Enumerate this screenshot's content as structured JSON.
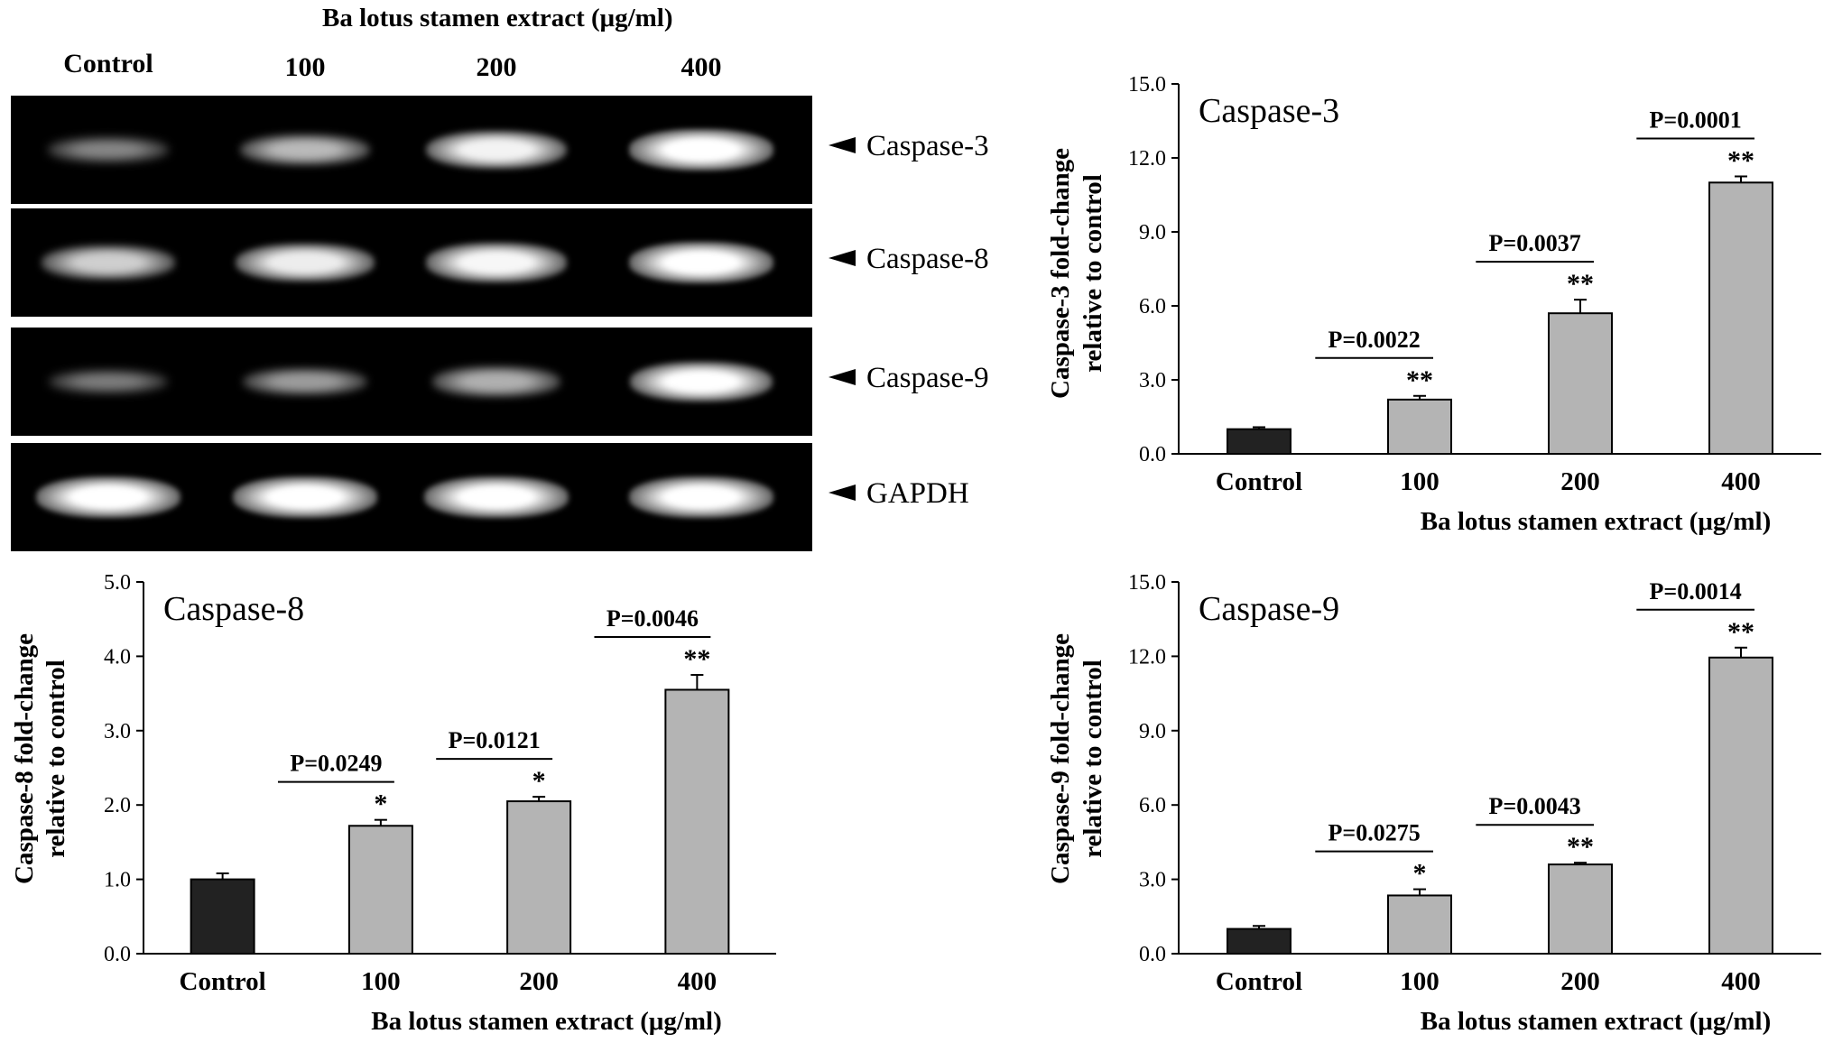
{
  "gel": {
    "title": "Ba lotus stamen extract (μg/ml)",
    "lanes": [
      "Control",
      "100",
      "200",
      "400"
    ],
    "rows": [
      {
        "label": "Caspase-3",
        "intensity": [
          0.35,
          0.6,
          0.88,
          1.0
        ]
      },
      {
        "label": "Caspase-8",
        "intensity": [
          0.7,
          0.85,
          0.9,
          1.0
        ]
      },
      {
        "label": "Caspase-9",
        "intensity": [
          0.3,
          0.45,
          0.55,
          0.95
        ]
      },
      {
        "label": "GAPDH",
        "intensity": [
          1.0,
          1.0,
          1.0,
          1.0
        ]
      }
    ]
  },
  "chart_data": [
    {
      "type": "bar",
      "title": "Caspase-3",
      "xlabel": "Ba lotus stamen extract (μg/ml)",
      "ylabel_line1": "Caspase-3 fold-change",
      "ylabel_line2": "relative to control",
      "categories": [
        "Control",
        "100",
        "200",
        "400"
      ],
      "values": [
        1.0,
        2.2,
        5.7,
        11.0
      ],
      "errors": [
        0.08,
        0.15,
        0.55,
        0.25
      ],
      "significance": [
        "",
        "**",
        "**",
        "**"
      ],
      "pvalues": [
        "P=0.0022",
        "P=0.0037",
        "P=0.0001"
      ],
      "ylim": [
        0,
        15
      ],
      "yticks": [
        "0.0",
        "3.0",
        "6.0",
        "9.0",
        "12.0",
        "15.0"
      ],
      "colors": {
        "control": "#222222",
        "treated": "#b4b4b4"
      }
    },
    {
      "type": "bar",
      "title": "Caspase-8",
      "xlabel": "Ba lotus stamen extract (μg/ml)",
      "ylabel_line1": "Caspase-8 fold-change",
      "ylabel_line2": "relative to control",
      "categories": [
        "Control",
        "100",
        "200",
        "400"
      ],
      "values": [
        1.0,
        1.72,
        2.05,
        3.55
      ],
      "errors": [
        0.08,
        0.08,
        0.06,
        0.2
      ],
      "significance": [
        "",
        "*",
        "*",
        "**"
      ],
      "pvalues": [
        "P=0.0249",
        "P=0.0121",
        "P=0.0046"
      ],
      "ylim": [
        0,
        5
      ],
      "yticks": [
        "0.0",
        "1.0",
        "2.0",
        "3.0",
        "4.0",
        "5.0"
      ],
      "colors": {
        "control": "#222222",
        "treated": "#b4b4b4"
      }
    },
    {
      "type": "bar",
      "title": "Caspase-9",
      "xlabel": "Ba lotus stamen extract (μg/ml)",
      "ylabel_line1": "Caspase-9 fold-change",
      "ylabel_line2": "relative to control",
      "categories": [
        "Control",
        "100",
        "200",
        "400"
      ],
      "values": [
        1.0,
        2.35,
        3.6,
        11.95
      ],
      "errors": [
        0.12,
        0.25,
        0.07,
        0.4
      ],
      "significance": [
        "",
        "*",
        "**",
        "**"
      ],
      "pvalues": [
        "P=0.0275",
        "P=0.0043",
        "P=0.0014"
      ],
      "ylim": [
        0,
        15
      ],
      "yticks": [
        "0.0",
        "3.0",
        "6.0",
        "9.0",
        "12.0",
        "15.0"
      ],
      "colors": {
        "control": "#222222",
        "treated": "#b4b4b4"
      }
    }
  ]
}
